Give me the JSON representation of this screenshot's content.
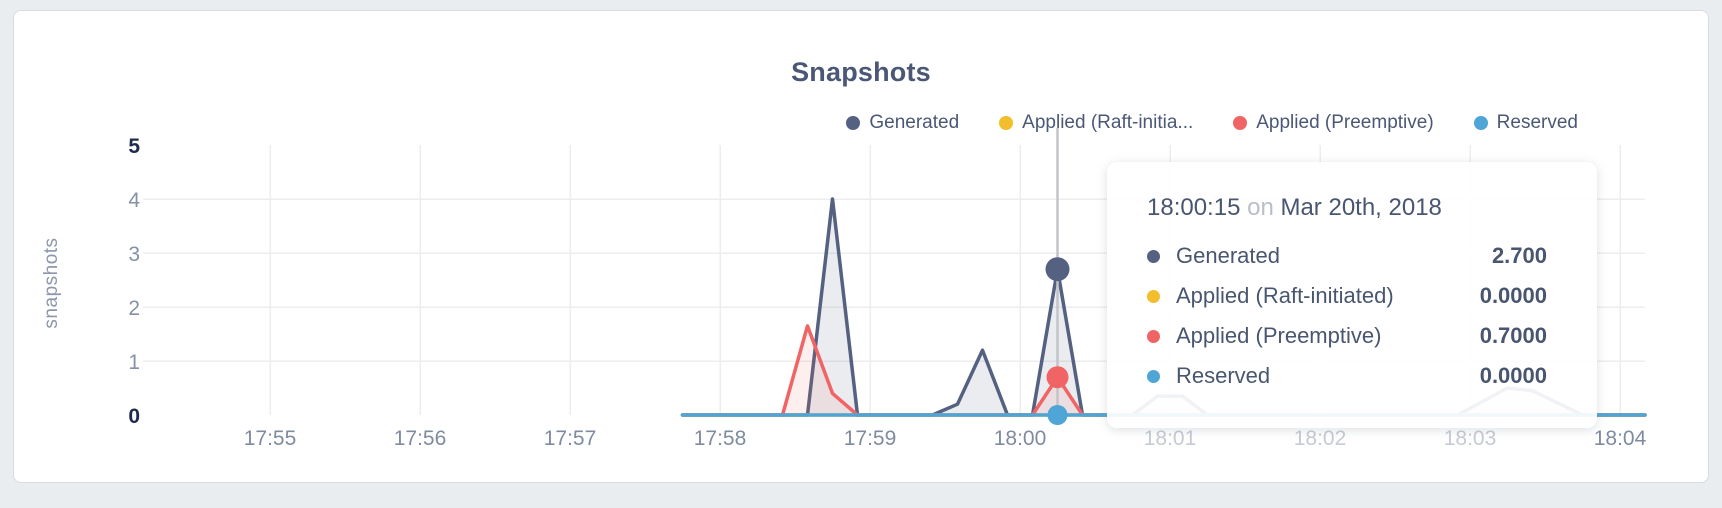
{
  "card": {
    "title": "Snapshots"
  },
  "legend": {
    "items": [
      {
        "label": "Generated",
        "color": "#546180"
      },
      {
        "label": "Applied (Raft-initia...",
        "color": "#f2be2c"
      },
      {
        "label": "Applied (Preemptive)",
        "color": "#f16465"
      },
      {
        "label": "Reserved",
        "color": "#4fa5d6"
      }
    ]
  },
  "tooltip": {
    "time": "18:00:15",
    "conjunction": "on",
    "date": "Mar 20th, 2018",
    "rows": [
      {
        "label": "Generated",
        "value": "2.700",
        "color": "#546180"
      },
      {
        "label": "Applied (Raft-initiated)",
        "value": "0.0000",
        "color": "#f2be2c"
      },
      {
        "label": "Applied (Preemptive)",
        "value": "0.7000",
        "color": "#f16465"
      },
      {
        "label": "Reserved",
        "value": "0.0000",
        "color": "#4fa5d6"
      }
    ]
  },
  "chart_data": {
    "type": "area",
    "title": "Snapshots",
    "xlabel": "",
    "ylabel": "snapshots",
    "ylim": [
      0,
      5
    ],
    "y_ticks": [
      0,
      1,
      2,
      3,
      4,
      5
    ],
    "x_ticks": [
      {
        "label": "17:55",
        "dimmed": false
      },
      {
        "label": "17:56",
        "dimmed": false
      },
      {
        "label": "17:57",
        "dimmed": false
      },
      {
        "label": "17:58",
        "dimmed": false
      },
      {
        "label": "17:59",
        "dimmed": false
      },
      {
        "label": "18:00",
        "dimmed": false
      },
      {
        "label": "18:01",
        "dimmed": true
      },
      {
        "label": "18:02",
        "dimmed": true
      },
      {
        "label": "18:03",
        "dimmed": true
      },
      {
        "label": "18:04",
        "dimmed": false
      }
    ],
    "x_range": [
      "17:54:09",
      "18:04:10"
    ],
    "grid": true,
    "legend_position": "top-right",
    "series": [
      {
        "name": "Generated",
        "color": "#546180",
        "fill_opacity": 0.12,
        "points": [
          [
            "17:57:45",
            0
          ],
          [
            "17:58:25",
            0
          ],
          [
            "17:58:35",
            0
          ],
          [
            "17:58:45",
            4.0
          ],
          [
            "17:58:55",
            0
          ],
          [
            "17:59:25",
            0
          ],
          [
            "17:59:35",
            0.2
          ],
          [
            "17:59:45",
            1.2
          ],
          [
            "17:59:55",
            0
          ],
          [
            "18:00:05",
            0
          ],
          [
            "18:00:15",
            2.7
          ],
          [
            "18:00:25",
            0
          ],
          [
            "18:00:45",
            0
          ],
          [
            "18:00:55",
            0.35
          ],
          [
            "18:01:05",
            0.35
          ],
          [
            "18:01:15",
            0
          ],
          [
            "18:02:55",
            0
          ],
          [
            "18:03:15",
            0.5
          ],
          [
            "18:03:25",
            0.45
          ],
          [
            "18:03:45",
            0
          ],
          [
            "18:04:10",
            0
          ]
        ]
      },
      {
        "name": "Applied (Raft-initiated)",
        "color": "#f2be2c",
        "fill_opacity": 0.1,
        "points": [
          [
            "17:57:45",
            0
          ],
          [
            "18:04:10",
            0
          ]
        ]
      },
      {
        "name": "Applied (Preemptive)",
        "color": "#f16465",
        "fill_opacity": 0.1,
        "points": [
          [
            "17:57:45",
            0
          ],
          [
            "17:58:25",
            0
          ],
          [
            "17:58:35",
            1.65
          ],
          [
            "17:58:45",
            0.4
          ],
          [
            "17:58:55",
            0
          ],
          [
            "18:00:05",
            0
          ],
          [
            "18:00:15",
            0.7
          ],
          [
            "18:00:25",
            0
          ],
          [
            "18:04:10",
            0
          ]
        ]
      },
      {
        "name": "Reserved",
        "color": "#4fa5d6",
        "fill_opacity": 0.1,
        "points": [
          [
            "17:57:45",
            0
          ],
          [
            "18:04:10",
            0
          ]
        ]
      }
    ],
    "hover": {
      "time": "18:00:15",
      "date": "Mar 20th, 2018",
      "values": [
        2.7,
        0.0,
        0.7,
        0.0
      ]
    }
  }
}
